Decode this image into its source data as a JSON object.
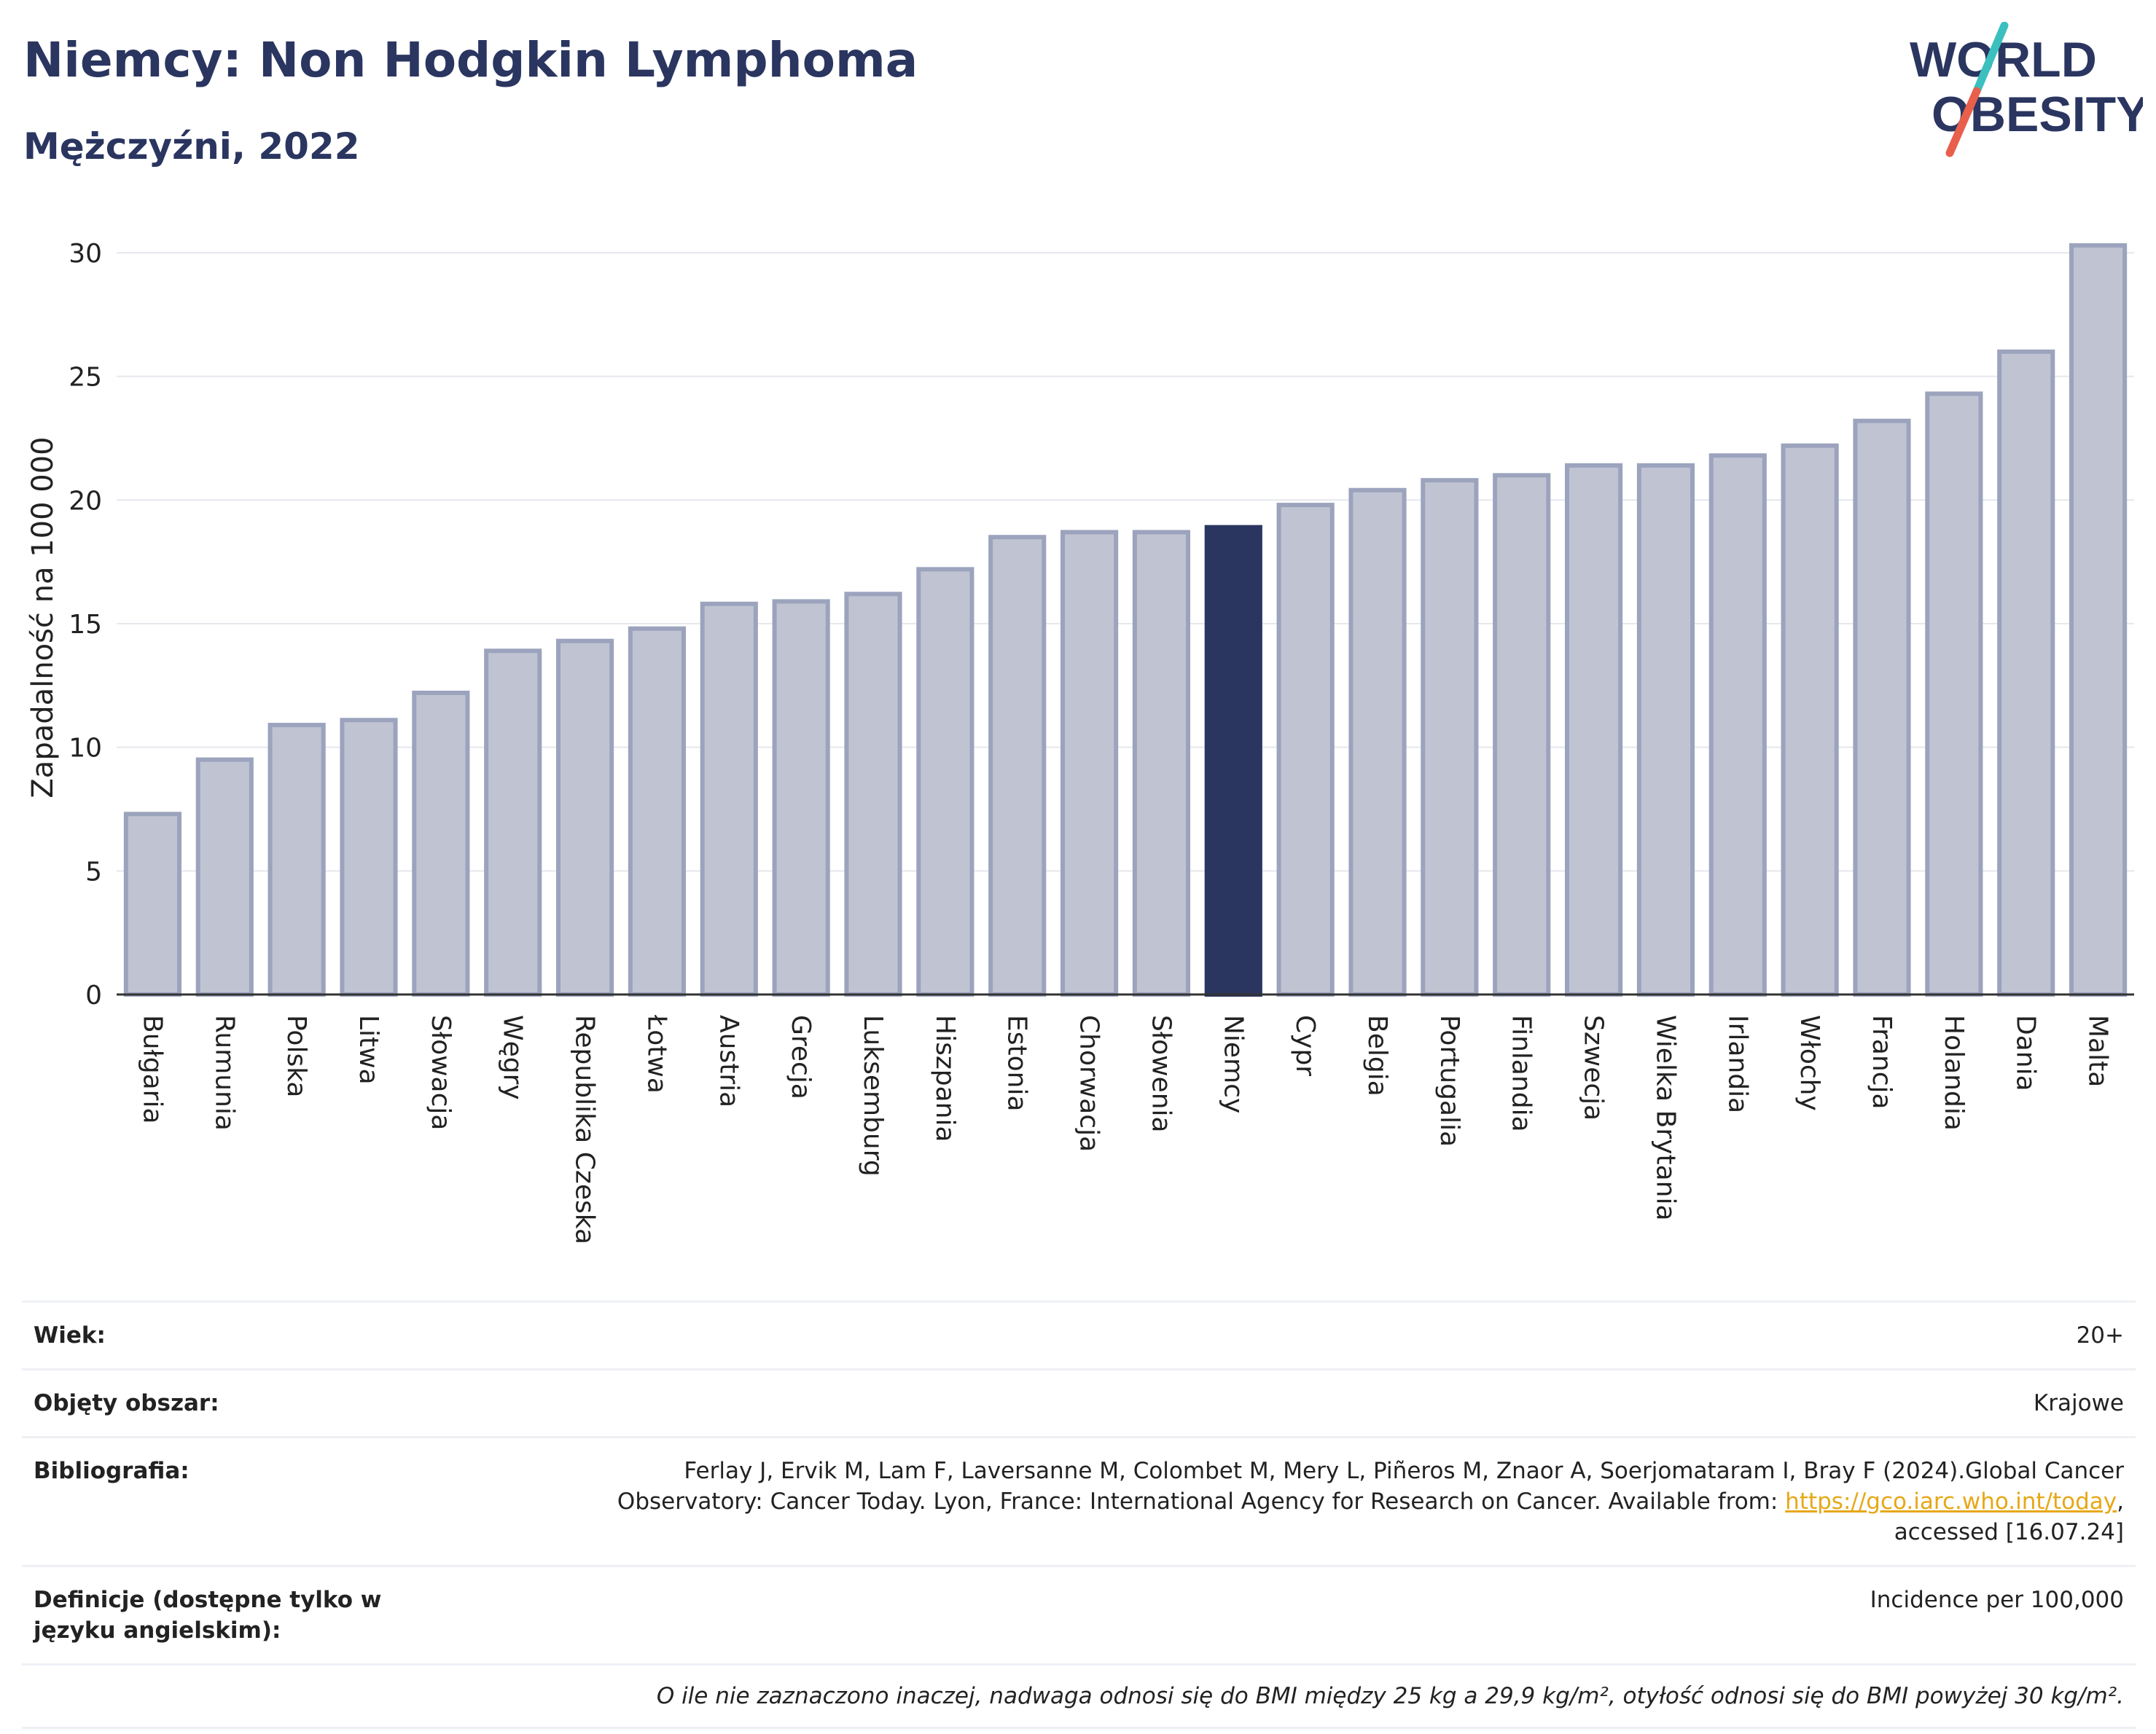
{
  "header": {
    "title": "Niemcy: Non Hodgkin Lymphoma",
    "subtitle": "Mężczyźni, 2022"
  },
  "logo": {
    "line1": "WORLD",
    "line2": "OBESITY",
    "colors": {
      "text": "#2a3560",
      "slash_top": "#3bbfbf",
      "slash_bottom": "#e8604c"
    }
  },
  "chart_data": {
    "type": "bar",
    "title": "Niemcy: Non Hodgkin Lymphoma",
    "subtitle": "Mężczyźni, 2022",
    "ylabel": "Zapadalność na 100 000",
    "xlabel": "",
    "ylim": [
      0,
      30.5
    ],
    "yticks": [
      0,
      5,
      10,
      15,
      20,
      25,
      30
    ],
    "grid": true,
    "highlight": "Niemcy",
    "colors": {
      "bar": "#c0c4d2",
      "bar_edge": "#9ba3bd",
      "highlight": "#2a3560",
      "grid": "#e6e8ee",
      "axis": "#333333"
    },
    "categories": [
      "Bułgaria",
      "Rumunia",
      "Polska",
      "Litwa",
      "Słowacja",
      "Węgry",
      "Republika Czeska",
      "Łotwa",
      "Austria",
      "Grecja",
      "Luksemburg",
      "Hiszpania",
      "Estonia",
      "Chorwacja",
      "Słowenia",
      "Niemcy",
      "Cypr",
      "Belgia",
      "Portugalia",
      "Finlandia",
      "Szwecja",
      "Wielka Brytania",
      "Irlandia",
      "Włochy",
      "Francja",
      "Holandia",
      "Dania",
      "Malta"
    ],
    "values": [
      7.3,
      9.5,
      10.9,
      11.1,
      12.2,
      13.9,
      14.3,
      14.8,
      15.8,
      15.9,
      16.2,
      17.2,
      18.5,
      18.7,
      18.7,
      18.9,
      19.8,
      20.4,
      20.8,
      21.0,
      21.4,
      21.4,
      21.8,
      22.2,
      23.2,
      24.3,
      26.0,
      30.3
    ]
  },
  "info": {
    "age_label": "Wiek:",
    "age_value": "20+",
    "area_label": "Objęty obszar:",
    "area_value": "Krajowe",
    "bib_label": "Bibliografia:",
    "bib_text_1": "Ferlay J, Ervik M, Lam F, Laversanne M, Colombet M, Mery L, Piñeros M, Znaor A, Soerjomataram I, Bray F (2024).Global Cancer",
    "bib_text_2": "Observatory: Cancer Today. Lyon, France: International Agency for Research on Cancer. Available from: ",
    "bib_link": "https://gco.iarc.who.int/today",
    "bib_text_3": ",",
    "bib_text_4": "accessed [16.07.24]",
    "def_label": "Definicje (dostępne tylko w języku angielskim):",
    "def_value": "Incidence per 100,000",
    "note": "O ile nie zaznaczono inaczej, nadwaga odnosi się do BMI między 25 kg a 29,9 kg/m², otyłość odnosi się do BMI powyżej 30 kg/m²."
  }
}
